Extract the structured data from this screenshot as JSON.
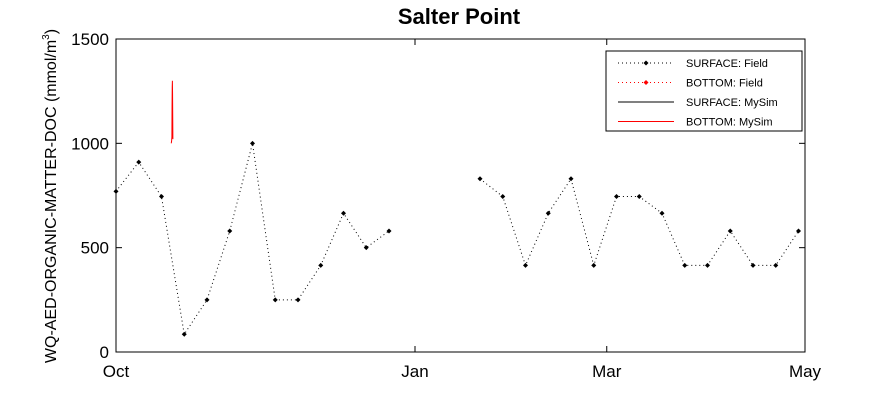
{
  "chart_data": {
    "type": "line",
    "title": "Salter Point",
    "xlabel": "",
    "ylabel": "WQ-AED-ORGANIC-MATTER-DOC (mmol/m³)",
    "ylabel_main": "WQ-AED-ORGANIC-MATTER-DOC (mmol/m",
    "ylabel_sup": "3",
    "ylabel_end": ")",
    "ylim": [
      0,
      1500
    ],
    "xlim": [
      "Oct 1",
      "May 1"
    ],
    "y_ticks": [
      "0",
      "500",
      "1000",
      "1500"
    ],
    "x_ticks": [
      "Oct",
      "Jan",
      "Mar",
      "May"
    ],
    "grid": false,
    "legend_position": "top-right",
    "series": [
      {
        "name": "SURFACE: Field",
        "color": "#000000",
        "style": "dotted-marker",
        "segments": [
          [
            [
              "Oct 1",
              770
            ],
            [
              "Oct 8",
              910
            ],
            [
              "Oct 15",
              745
            ],
            [
              "Oct 22",
              85
            ],
            [
              "Oct 29",
              250
            ],
            [
              "Nov 5",
              580
            ],
            [
              "Nov 12",
              1000
            ],
            [
              "Nov 19",
              250
            ],
            [
              "Nov 26",
              250
            ],
            [
              "Dec 3",
              415
            ],
            [
              "Dec 10",
              665
            ],
            [
              "Dec 17",
              500
            ],
            [
              "Dec 24",
              580
            ]
          ],
          [
            [
              "Jan 21",
              830
            ],
            [
              "Jan 28",
              745
            ],
            [
              "Feb 4",
              415
            ],
            [
              "Feb 11",
              665
            ],
            [
              "Feb 18",
              830
            ],
            [
              "Feb 25",
              415
            ],
            [
              "Mar 4",
              745
            ],
            [
              "Mar 11",
              745
            ],
            [
              "Mar 18",
              665
            ],
            [
              "Mar 25",
              415
            ],
            [
              "Apr 1",
              415
            ],
            [
              "Apr 8",
              580
            ],
            [
              "Apr 15",
              415
            ],
            [
              "Apr 22",
              415
            ],
            [
              "Apr 29",
              580
            ]
          ]
        ]
      },
      {
        "name": "BOTTOM: Field",
        "color": "#ff0000",
        "style": "dotted-marker",
        "segments": []
      },
      {
        "name": "SURFACE: MySim",
        "color": "#000000",
        "style": "solid",
        "segments": []
      },
      {
        "name": "BOTTOM: MySim",
        "color": "#ff0000",
        "style": "solid",
        "segments": [
          [
            [
              "Oct 18.0",
              1000
            ],
            [
              "Oct 18.1",
              1010
            ],
            [
              "Oct 18.2",
              1030
            ],
            [
              "Oct 18.25",
              1180
            ],
            [
              "Oct 18.3",
              1270
            ],
            [
              "Oct 18.35",
              1300
            ],
            [
              "Oct 18.4",
              1240
            ],
            [
              "Oct 18.5",
              1020
            ]
          ]
        ]
      }
    ]
  }
}
